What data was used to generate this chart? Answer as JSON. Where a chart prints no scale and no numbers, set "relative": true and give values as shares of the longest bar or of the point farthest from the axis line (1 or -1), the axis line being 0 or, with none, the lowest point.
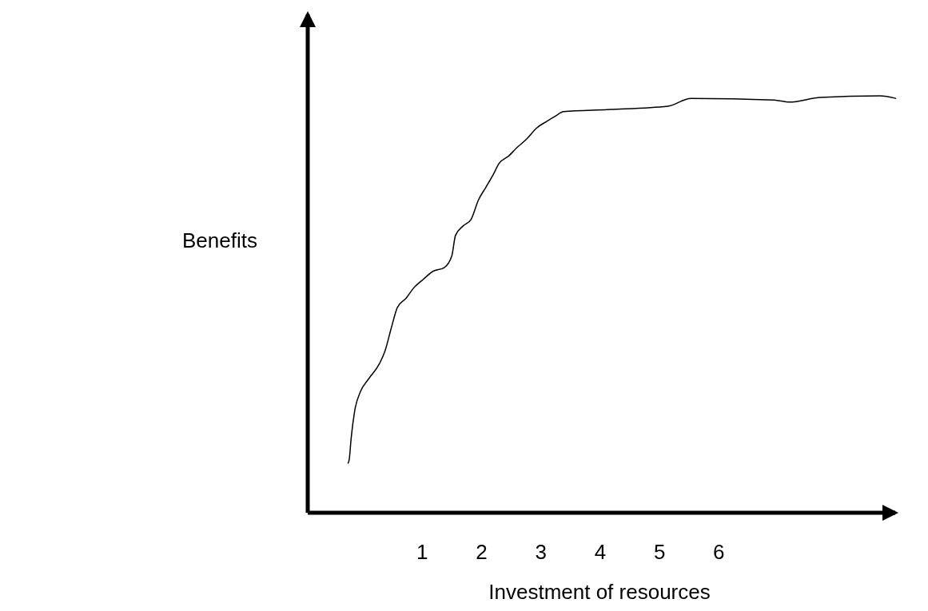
{
  "chart_data": {
    "type": "line",
    "xlabel": "Investment of resources",
    "ylabel": "Benefits",
    "relative": true,
    "xlim": [
      -0.93,
      9.0
    ],
    "xticks": [
      1,
      2,
      3,
      4,
      5,
      6
    ],
    "grid": false,
    "marker": "none",
    "line_style": "solid",
    "series": [
      {
        "color": "#000000",
        "x": [
          -0.25,
          -0.23,
          -0.2,
          -0.14,
          -0.04,
          0.09,
          0.28,
          0.37,
          0.48,
          0.58,
          0.73,
          0.86,
          1.01,
          1.18,
          1.37,
          1.5,
          1.56,
          1.69,
          1.82,
          1.95,
          2.07,
          2.2,
          2.29,
          2.46,
          2.59,
          2.75,
          2.93,
          3.1,
          3.25,
          3.38,
          4.12,
          5.14,
          5.53,
          6.93,
          7.19,
          7.7,
          8.72,
          8.98
        ],
        "values": [
          0.119,
          0.128,
          0.176,
          0.243,
          0.291,
          0.32,
          0.358,
          0.387,
          0.444,
          0.492,
          0.515,
          0.54,
          0.559,
          0.579,
          0.588,
          0.617,
          0.665,
          0.688,
          0.703,
          0.751,
          0.78,
          0.812,
          0.837,
          0.856,
          0.875,
          0.895,
          0.923,
          0.939,
          0.952,
          0.962,
          0.967,
          0.975,
          0.994,
          0.99,
          0.985,
          0.996,
          1.0,
          0.994
        ]
      }
    ]
  }
}
